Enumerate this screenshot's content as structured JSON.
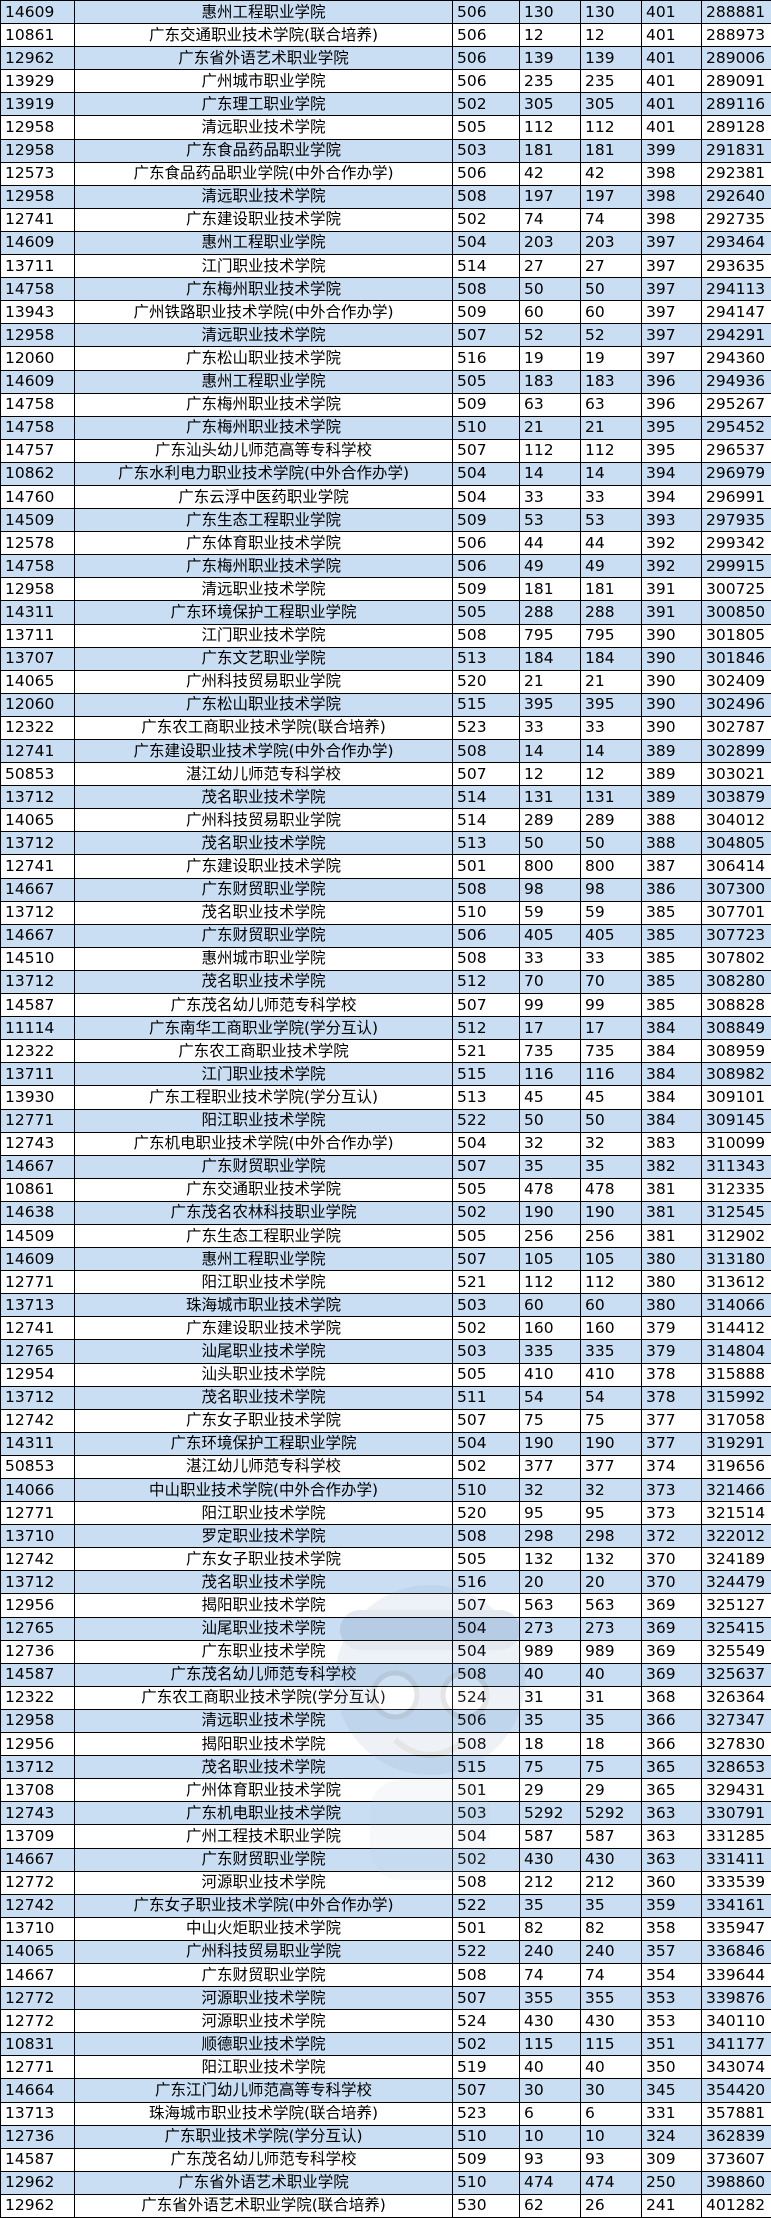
{
  "rows": [
    [
      "14609",
      "惠州工程职业学院",
      "506",
      "130",
      "130",
      "401",
      "288881"
    ],
    [
      "10861",
      "广东交通职业技术学院(联合培养)",
      "506",
      "12",
      "12",
      "401",
      "288973"
    ],
    [
      "12962",
      "广东省外语艺术职业学院",
      "506",
      "139",
      "139",
      "401",
      "289006"
    ],
    [
      "13929",
      "广州城市职业学院",
      "506",
      "235",
      "235",
      "401",
      "289091"
    ],
    [
      "13919",
      "广东理工职业学院",
      "502",
      "305",
      "305",
      "401",
      "289116"
    ],
    [
      "12958",
      "清远职业技术学院",
      "505",
      "112",
      "112",
      "401",
      "289128"
    ],
    [
      "12958",
      "广东食品药品职业学院",
      "503",
      "181",
      "181",
      "399",
      "291831"
    ],
    [
      "12573",
      "广东食品药品职业学院(中外合作办学)",
      "506",
      "42",
      "42",
      "398",
      "292381"
    ],
    [
      "12958",
      "清远职业技术学院",
      "508",
      "197",
      "197",
      "398",
      "292640"
    ],
    [
      "12741",
      "广东建设职业技术学院",
      "502",
      "74",
      "74",
      "398",
      "292735"
    ],
    [
      "14609",
      "惠州工程职业学院",
      "504",
      "203",
      "203",
      "397",
      "293464"
    ],
    [
      "13711",
      "江门职业技术学院",
      "514",
      "27",
      "27",
      "397",
      "293635"
    ],
    [
      "14758",
      "广东梅州职业技术学院",
      "508",
      "50",
      "50",
      "397",
      "294113"
    ],
    [
      "13943",
      "广州铁路职业技术学院(中外合作办学)",
      "509",
      "60",
      "60",
      "397",
      "294147"
    ],
    [
      "12958",
      "清远职业技术学院",
      "507",
      "52",
      "52",
      "397",
      "294291"
    ],
    [
      "12060",
      "广东松山职业技术学院",
      "516",
      "19",
      "19",
      "397",
      "294360"
    ],
    [
      "14609",
      "惠州工程职业学院",
      "505",
      "183",
      "183",
      "396",
      "294936"
    ],
    [
      "14758",
      "广东梅州职业技术学院",
      "509",
      "63",
      "63",
      "396",
      "295267"
    ],
    [
      "14758",
      "广东梅州职业技术学院",
      "510",
      "21",
      "21",
      "395",
      "295452"
    ],
    [
      "14757",
      "广东汕头幼儿师范高等专科学校",
      "507",
      "112",
      "112",
      "395",
      "296537"
    ],
    [
      "10862",
      "广东水利电力职业技术学院(中外合作办学)",
      "504",
      "14",
      "14",
      "394",
      "296979"
    ],
    [
      "14760",
      "广东云浮中医药职业学院",
      "504",
      "33",
      "33",
      "394",
      "296991"
    ],
    [
      "14509",
      "广东生态工程职业学院",
      "509",
      "53",
      "53",
      "393",
      "297935"
    ],
    [
      "12578",
      "广东体育职业技术学院",
      "506",
      "44",
      "44",
      "392",
      "299342"
    ],
    [
      "14758",
      "广东梅州职业技术学院",
      "506",
      "49",
      "49",
      "392",
      "299915"
    ],
    [
      "12958",
      "清远职业技术学院",
      "509",
      "181",
      "181",
      "391",
      "300725"
    ],
    [
      "14311",
      "广东环境保护工程职业学院",
      "505",
      "288",
      "288",
      "391",
      "300850"
    ],
    [
      "13711",
      "江门职业技术学院",
      "508",
      "795",
      "795",
      "390",
      "301805"
    ],
    [
      "13707",
      "广东文艺职业学院",
      "513",
      "184",
      "184",
      "390",
      "301846"
    ],
    [
      "14065",
      "广州科技贸易职业学院",
      "520",
      "21",
      "21",
      "390",
      "302409"
    ],
    [
      "12060",
      "广东松山职业技术学院",
      "515",
      "395",
      "395",
      "390",
      "302496"
    ],
    [
      "12322",
      "广东农工商职业技术学院(联合培养)",
      "523",
      "33",
      "33",
      "390",
      "302787"
    ],
    [
      "12741",
      "广东建设职业技术学院(中外合作办学)",
      "508",
      "14",
      "14",
      "389",
      "302899"
    ],
    [
      "50853",
      "湛江幼儿师范专科学校",
      "507",
      "12",
      "12",
      "389",
      "303021"
    ],
    [
      "13712",
      "茂名职业技术学院",
      "514",
      "131",
      "131",
      "389",
      "303879"
    ],
    [
      "14065",
      "广州科技贸易职业学院",
      "514",
      "289",
      "289",
      "388",
      "304012"
    ],
    [
      "13712",
      "茂名职业技术学院",
      "513",
      "50",
      "50",
      "388",
      "304805"
    ],
    [
      "12741",
      "广东建设职业技术学院",
      "501",
      "800",
      "800",
      "387",
      "306414"
    ],
    [
      "14667",
      "广东财贸职业学院",
      "508",
      "98",
      "98",
      "386",
      "307300"
    ],
    [
      "13712",
      "茂名职业技术学院",
      "510",
      "59",
      "59",
      "385",
      "307701"
    ],
    [
      "14667",
      "广东财贸职业学院",
      "506",
      "405",
      "405",
      "385",
      "307723"
    ],
    [
      "14510",
      "惠州城市职业学院",
      "508",
      "33",
      "33",
      "385",
      "307802"
    ],
    [
      "13712",
      "茂名职业技术学院",
      "512",
      "70",
      "70",
      "385",
      "308280"
    ],
    [
      "14587",
      "广东茂名幼儿师范专科学校",
      "507",
      "99",
      "99",
      "385",
      "308828"
    ],
    [
      "11114",
      "广东南华工商职业学院(学分互认)",
      "512",
      "17",
      "17",
      "384",
      "308849"
    ],
    [
      "12322",
      "广东农工商职业技术学院",
      "521",
      "735",
      "735",
      "384",
      "308959"
    ],
    [
      "13711",
      "江门职业技术学院",
      "515",
      "116",
      "116",
      "384",
      "308982"
    ],
    [
      "13930",
      "广东工程职业技术学院(学分互认)",
      "513",
      "45",
      "45",
      "384",
      "309101"
    ],
    [
      "12771",
      "阳江职业技术学院",
      "522",
      "50",
      "50",
      "384",
      "309145"
    ],
    [
      "12743",
      "广东机电职业技术学院(中外合作办学)",
      "504",
      "32",
      "32",
      "383",
      "310099"
    ],
    [
      "14667",
      "广东财贸职业学院",
      "507",
      "35",
      "35",
      "382",
      "311343"
    ],
    [
      "10861",
      "广东交通职业技术学院",
      "505",
      "478",
      "478",
      "381",
      "312335"
    ],
    [
      "14638",
      "广东茂名农林科技职业学院",
      "502",
      "190",
      "190",
      "381",
      "312545"
    ],
    [
      "14509",
      "广东生态工程职业学院",
      "505",
      "256",
      "256",
      "381",
      "312902"
    ],
    [
      "14609",
      "惠州工程职业学院",
      "507",
      "105",
      "105",
      "380",
      "313180"
    ],
    [
      "12771",
      "阳江职业技术学院",
      "521",
      "112",
      "112",
      "380",
      "313612"
    ],
    [
      "13713",
      "珠海城市职业技术学院",
      "503",
      "60",
      "60",
      "380",
      "314066"
    ],
    [
      "12741",
      "广东建设职业技术学院",
      "502",
      "160",
      "160",
      "379",
      "314412"
    ],
    [
      "12765",
      "汕尾职业技术学院",
      "503",
      "335",
      "335",
      "379",
      "314804"
    ],
    [
      "12954",
      "汕头职业技术学院",
      "505",
      "410",
      "410",
      "378",
      "315888"
    ],
    [
      "13712",
      "茂名职业技术学院",
      "511",
      "54",
      "54",
      "378",
      "315992"
    ],
    [
      "12742",
      "广东女子职业技术学院",
      "507",
      "75",
      "75",
      "377",
      "317058"
    ],
    [
      "14311",
      "广东环境保护工程职业学院",
      "504",
      "190",
      "190",
      "377",
      "319291"
    ],
    [
      "50853",
      "湛江幼儿师范专科学校",
      "502",
      "377",
      "377",
      "374",
      "319656"
    ],
    [
      "14066",
      "中山职业技术学院(中外合作办学)",
      "510",
      "32",
      "32",
      "373",
      "321466"
    ],
    [
      "12771",
      "阳江职业技术学院",
      "520",
      "95",
      "95",
      "373",
      "321514"
    ],
    [
      "13710",
      "罗定职业技术学院",
      "508",
      "298",
      "298",
      "372",
      "322012"
    ],
    [
      "12742",
      "广东女子职业技术学院",
      "505",
      "132",
      "132",
      "370",
      "324189"
    ],
    [
      "13712",
      "茂名职业技术学院",
      "516",
      "20",
      "20",
      "370",
      "324479"
    ],
    [
      "12956",
      "揭阳职业技术学院",
      "507",
      "563",
      "563",
      "369",
      "325127"
    ],
    [
      "12765",
      "汕尾职业技术学院",
      "504",
      "273",
      "273",
      "369",
      "325415"
    ],
    [
      "12736",
      "广东职业技术学院",
      "504",
      "989",
      "989",
      "369",
      "325549"
    ],
    [
      "14587",
      "广东茂名幼儿师范专科学校",
      "508",
      "40",
      "40",
      "369",
      "325637"
    ],
    [
      "12322",
      "广东农工商职业技术学院(学分互认)",
      "524",
      "31",
      "31",
      "368",
      "326364"
    ],
    [
      "12958",
      "清远职业技术学院",
      "506",
      "35",
      "35",
      "366",
      "327347"
    ],
    [
      "12956",
      "揭阳职业技术学院",
      "508",
      "18",
      "18",
      "366",
      "327830"
    ],
    [
      "13712",
      "茂名职业技术学院",
      "515",
      "75",
      "75",
      "365",
      "328653"
    ],
    [
      "13708",
      "广州体育职业技术学院",
      "501",
      "29",
      "29",
      "365",
      "329431"
    ],
    [
      "12743",
      "广东机电职业技术学院",
      "503",
      "5292",
      "5292",
      "363",
      "330791"
    ],
    [
      "13709",
      "广州工程技术职业学院",
      "504",
      "587",
      "587",
      "363",
      "331285"
    ],
    [
      "14667",
      "广东财贸职业学院",
      "502",
      "430",
      "430",
      "363",
      "331411"
    ],
    [
      "12772",
      "河源职业技术学院",
      "508",
      "212",
      "212",
      "360",
      "333539"
    ],
    [
      "12742",
      "广东女子职业技术学院(中外合作办学)",
      "522",
      "35",
      "35",
      "359",
      "334161"
    ],
    [
      "13710",
      "中山火炬职业技术学院",
      "501",
      "82",
      "82",
      "358",
      "335947"
    ],
    [
      "14065",
      "广州科技贸易职业学院",
      "522",
      "240",
      "240",
      "357",
      "336846"
    ],
    [
      "14667",
      "广东财贸职业学院",
      "508",
      "74",
      "74",
      "354",
      "339644"
    ],
    [
      "12772",
      "河源职业技术学院",
      "507",
      "355",
      "355",
      "353",
      "339876"
    ],
    [
      "12772",
      "河源职业技术学院",
      "524",
      "430",
      "430",
      "353",
      "340110"
    ],
    [
      "10831",
      "顺德职业技术学院",
      "502",
      "115",
      "115",
      "351",
      "341177"
    ],
    [
      "12771",
      "阳江职业技术学院",
      "519",
      "40",
      "40",
      "350",
      "343074"
    ],
    [
      "14664",
      "广东江门幼儿师范高等专科学校",
      "507",
      "30",
      "30",
      "345",
      "354420"
    ],
    [
      "13713",
      "珠海城市职业技术学院(联合培养)",
      "523",
      "6",
      "6",
      "331",
      "357881"
    ],
    [
      "12736",
      "广东职业技术学院(学分互认)",
      "510",
      "10",
      "10",
      "324",
      "362839"
    ],
    [
      "14587",
      "广东茂名幼儿师范专科学校",
      "509",
      "93",
      "93",
      "309",
      "373607"
    ],
    [
      "12962",
      "广东省外语艺术职业学院",
      "510",
      "474",
      "474",
      "250",
      "398860"
    ],
    [
      "12962",
      "广东省外语艺术职业学院(联合培养)",
      "530",
      "62",
      "26",
      "241",
      "401282"
    ]
  ]
}
